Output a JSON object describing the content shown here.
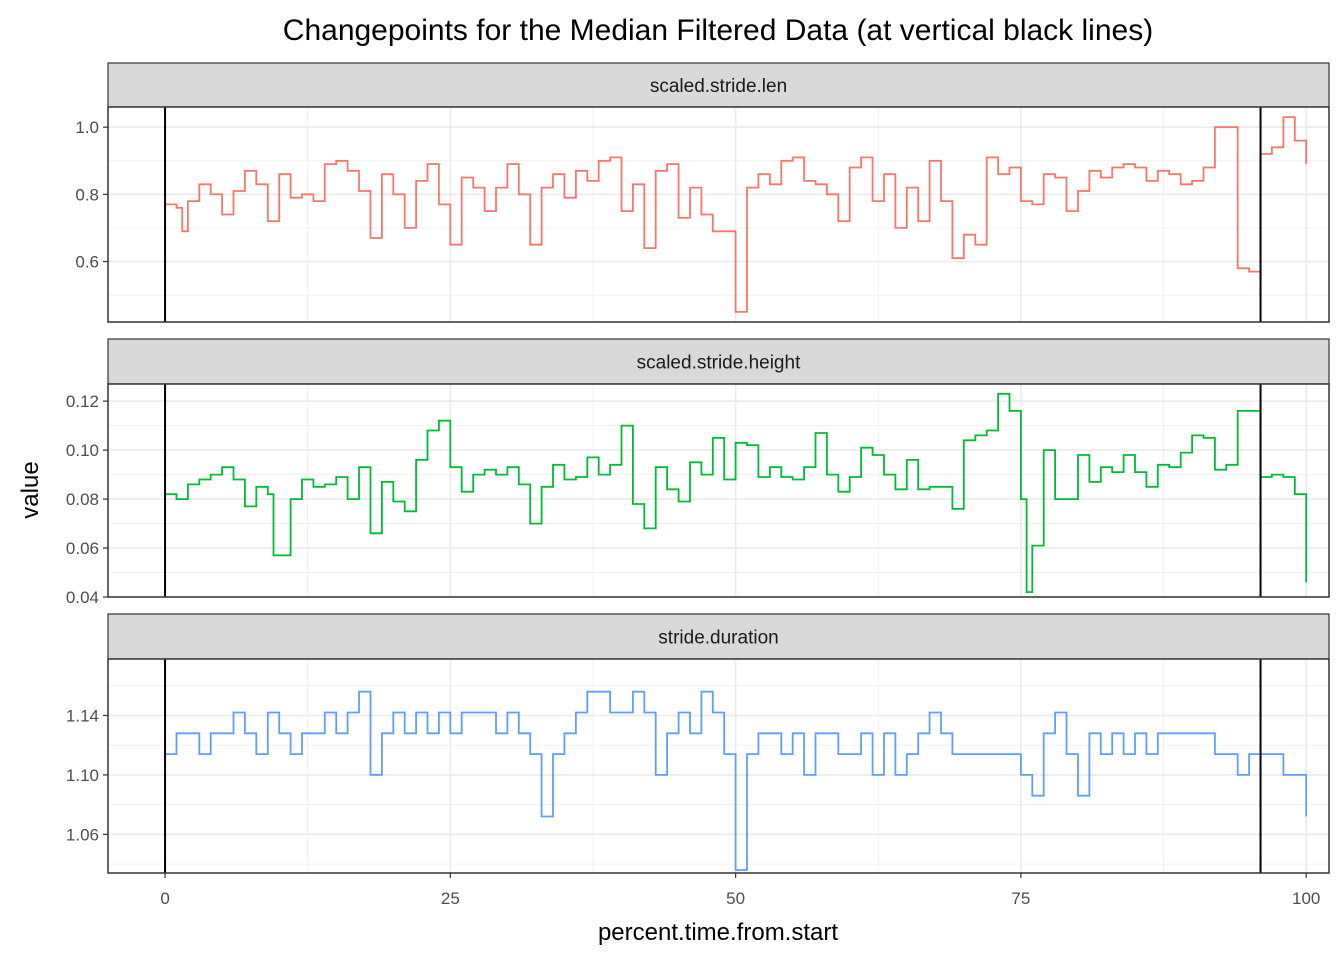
{
  "chart_data": {
    "type": "line",
    "title": "Changepoints for the Median Filtered Data (at vertical black lines)",
    "xlabel": "percent.time.from.start",
    "ylabel": "value",
    "xlim": [
      -5,
      102
    ],
    "x_ticks": [
      0,
      25,
      50,
      75,
      100
    ],
    "x_tick_labels": [
      "0",
      "25",
      "50",
      "75",
      "100"
    ],
    "grid": true,
    "legend": "none",
    "changepoints": [
      0,
      96
    ],
    "changepoint_color": "#000000",
    "panels": [
      {
        "strip": "scaled.stride.len",
        "color": "#F8766D",
        "ylim": [
          0.42,
          1.06
        ],
        "y_ticks": [
          0.6,
          0.8,
          1.0
        ],
        "y_tick_labels": [
          "0.6",
          "0.8",
          "1.0"
        ],
        "x": [
          0,
          1,
          1.5,
          2,
          3,
          4,
          5,
          6,
          7,
          8,
          9,
          10,
          11,
          12,
          13,
          14,
          15,
          16,
          17,
          18,
          19,
          20,
          21,
          22,
          23,
          24,
          25,
          26,
          27,
          28,
          29,
          30,
          31,
          32,
          33,
          34,
          35,
          36,
          37,
          38,
          39,
          40,
          41,
          42,
          43,
          44,
          45,
          46,
          47,
          48,
          49,
          50,
          50.5,
          51,
          52,
          53,
          54,
          55,
          56,
          57,
          58,
          59,
          60,
          61,
          62,
          63,
          64,
          65,
          66,
          67,
          68,
          69,
          70,
          71,
          72,
          73,
          74,
          75,
          76,
          77,
          78,
          79,
          80,
          81,
          82,
          83,
          84,
          85,
          86,
          87,
          88,
          89,
          90,
          91,
          92,
          93,
          94,
          95,
          96,
          97,
          98,
          99,
          100
        ],
        "y": [
          0.77,
          0.76,
          0.69,
          0.78,
          0.83,
          0.8,
          0.74,
          0.81,
          0.87,
          0.83,
          0.72,
          0.86,
          0.79,
          0.8,
          0.78,
          0.89,
          0.9,
          0.87,
          0.81,
          0.67,
          0.86,
          0.8,
          0.7,
          0.84,
          0.89,
          0.77,
          0.65,
          0.85,
          0.82,
          0.75,
          0.82,
          0.89,
          0.8,
          0.65,
          0.82,
          0.86,
          0.79,
          0.87,
          0.84,
          0.9,
          0.91,
          0.75,
          0.83,
          0.64,
          0.87,
          0.89,
          0.73,
          0.82,
          0.74,
          0.69,
          0.69,
          0.45,
          0.45,
          0.82,
          0.86,
          0.83,
          0.9,
          0.91,
          0.84,
          0.83,
          0.8,
          0.72,
          0.88,
          0.91,
          0.78,
          0.86,
          0.7,
          0.82,
          0.72,
          0.9,
          0.78,
          0.61,
          0.68,
          0.65,
          0.91,
          0.86,
          0.88,
          0.78,
          0.77,
          0.86,
          0.85,
          0.75,
          0.81,
          0.87,
          0.85,
          0.88,
          0.89,
          0.88,
          0.84,
          0.87,
          0.86,
          0.83,
          0.84,
          0.88,
          1.0,
          1.0,
          0.58,
          0.57,
          0.92,
          0.94,
          1.03,
          0.96,
          0.89
        ]
      },
      {
        "strip": "scaled.stride.height",
        "color": "#00BA38",
        "ylim": [
          0.04,
          0.127
        ],
        "y_ticks": [
          0.04,
          0.06,
          0.08,
          0.1,
          0.12
        ],
        "y_tick_labels": [
          "0.04",
          "0.06",
          "0.08",
          "0.10",
          "0.12"
        ],
        "x": [
          0,
          1,
          2,
          3,
          4,
          5,
          6,
          7,
          8,
          9,
          9.5,
          10,
          11,
          12,
          13,
          14,
          15,
          16,
          17,
          18,
          19,
          20,
          21,
          22,
          23,
          24,
          25,
          26,
          27,
          28,
          29,
          30,
          31,
          32,
          33,
          34,
          35,
          36,
          37,
          38,
          39,
          40,
          41,
          42,
          43,
          44,
          45,
          46,
          47,
          48,
          49,
          50,
          51,
          52,
          53,
          54,
          55,
          56,
          57,
          58,
          59,
          60,
          61,
          62,
          63,
          64,
          65,
          66,
          67,
          68,
          69,
          70,
          71,
          72,
          73,
          74,
          75,
          75.5,
          76,
          77,
          78,
          79,
          80,
          81,
          82,
          83,
          84,
          85,
          86,
          87,
          88,
          89,
          90,
          91,
          92,
          93,
          94,
          95,
          96,
          97,
          98,
          99,
          100
        ],
        "y": [
          0.082,
          0.08,
          0.086,
          0.088,
          0.09,
          0.093,
          0.088,
          0.077,
          0.085,
          0.082,
          0.057,
          0.057,
          0.08,
          0.088,
          0.085,
          0.086,
          0.089,
          0.08,
          0.093,
          0.066,
          0.087,
          0.079,
          0.075,
          0.096,
          0.108,
          0.112,
          0.093,
          0.083,
          0.09,
          0.092,
          0.09,
          0.093,
          0.086,
          0.07,
          0.085,
          0.094,
          0.088,
          0.089,
          0.097,
          0.09,
          0.094,
          0.11,
          0.078,
          0.068,
          0.093,
          0.084,
          0.079,
          0.095,
          0.09,
          0.105,
          0.088,
          0.103,
          0.102,
          0.089,
          0.093,
          0.089,
          0.088,
          0.093,
          0.107,
          0.09,
          0.083,
          0.089,
          0.101,
          0.098,
          0.09,
          0.084,
          0.096,
          0.084,
          0.085,
          0.085,
          0.076,
          0.104,
          0.106,
          0.108,
          0.123,
          0.116,
          0.08,
          0.042,
          0.061,
          0.1,
          0.08,
          0.08,
          0.098,
          0.087,
          0.093,
          0.091,
          0.098,
          0.091,
          0.085,
          0.094,
          0.093,
          0.099,
          0.106,
          0.105,
          0.092,
          0.094,
          0.116,
          0.116,
          0.089,
          0.09,
          0.089,
          0.082,
          0.046
        ]
      },
      {
        "strip": "stride.duration",
        "color": "#619CFF",
        "ylim": [
          1.034,
          1.178
        ],
        "y_ticks": [
          1.06,
          1.1,
          1.14
        ],
        "y_tick_labels": [
          "1.06",
          "1.10",
          "1.14"
        ],
        "x": [
          0,
          1,
          2,
          3,
          4,
          5,
          6,
          7,
          8,
          9,
          10,
          11,
          12,
          13,
          14,
          15,
          16,
          17,
          18,
          19,
          20,
          21,
          22,
          23,
          24,
          25,
          26,
          27,
          28,
          29,
          30,
          31,
          32,
          33,
          34,
          35,
          36,
          37,
          38,
          39,
          40,
          41,
          42,
          43,
          44,
          45,
          46,
          47,
          48,
          49,
          50,
          51,
          52,
          53,
          54,
          55,
          56,
          57,
          58,
          59,
          60,
          61,
          62,
          63,
          64,
          65,
          66,
          67,
          68,
          69,
          70,
          71,
          72,
          73,
          74,
          75,
          76,
          77,
          78,
          79,
          80,
          81,
          82,
          83,
          84,
          85,
          86,
          87,
          88,
          89,
          90,
          91,
          92,
          93,
          94,
          95,
          96,
          97,
          98,
          99,
          100
        ],
        "y": [
          1.114,
          1.128,
          1.128,
          1.114,
          1.128,
          1.128,
          1.142,
          1.128,
          1.114,
          1.142,
          1.128,
          1.114,
          1.128,
          1.128,
          1.142,
          1.128,
          1.142,
          1.156,
          1.1,
          1.128,
          1.142,
          1.128,
          1.142,
          1.128,
          1.142,
          1.128,
          1.142,
          1.142,
          1.142,
          1.128,
          1.142,
          1.128,
          1.114,
          1.072,
          1.114,
          1.128,
          1.142,
          1.156,
          1.156,
          1.142,
          1.142,
          1.156,
          1.142,
          1.1,
          1.128,
          1.142,
          1.128,
          1.156,
          1.142,
          1.114,
          1.036,
          1.114,
          1.128,
          1.128,
          1.114,
          1.128,
          1.1,
          1.128,
          1.128,
          1.114,
          1.114,
          1.128,
          1.1,
          1.128,
          1.1,
          1.114,
          1.128,
          1.142,
          1.128,
          1.114,
          1.114,
          1.114,
          1.114,
          1.114,
          1.114,
          1.1,
          1.086,
          1.128,
          1.142,
          1.114,
          1.086,
          1.128,
          1.114,
          1.128,
          1.114,
          1.128,
          1.114,
          1.128,
          1.128,
          1.128,
          1.128,
          1.128,
          1.114,
          1.114,
          1.1,
          1.114,
          1.114,
          1.114,
          1.1,
          1.1,
          1.072
        ]
      }
    ]
  }
}
